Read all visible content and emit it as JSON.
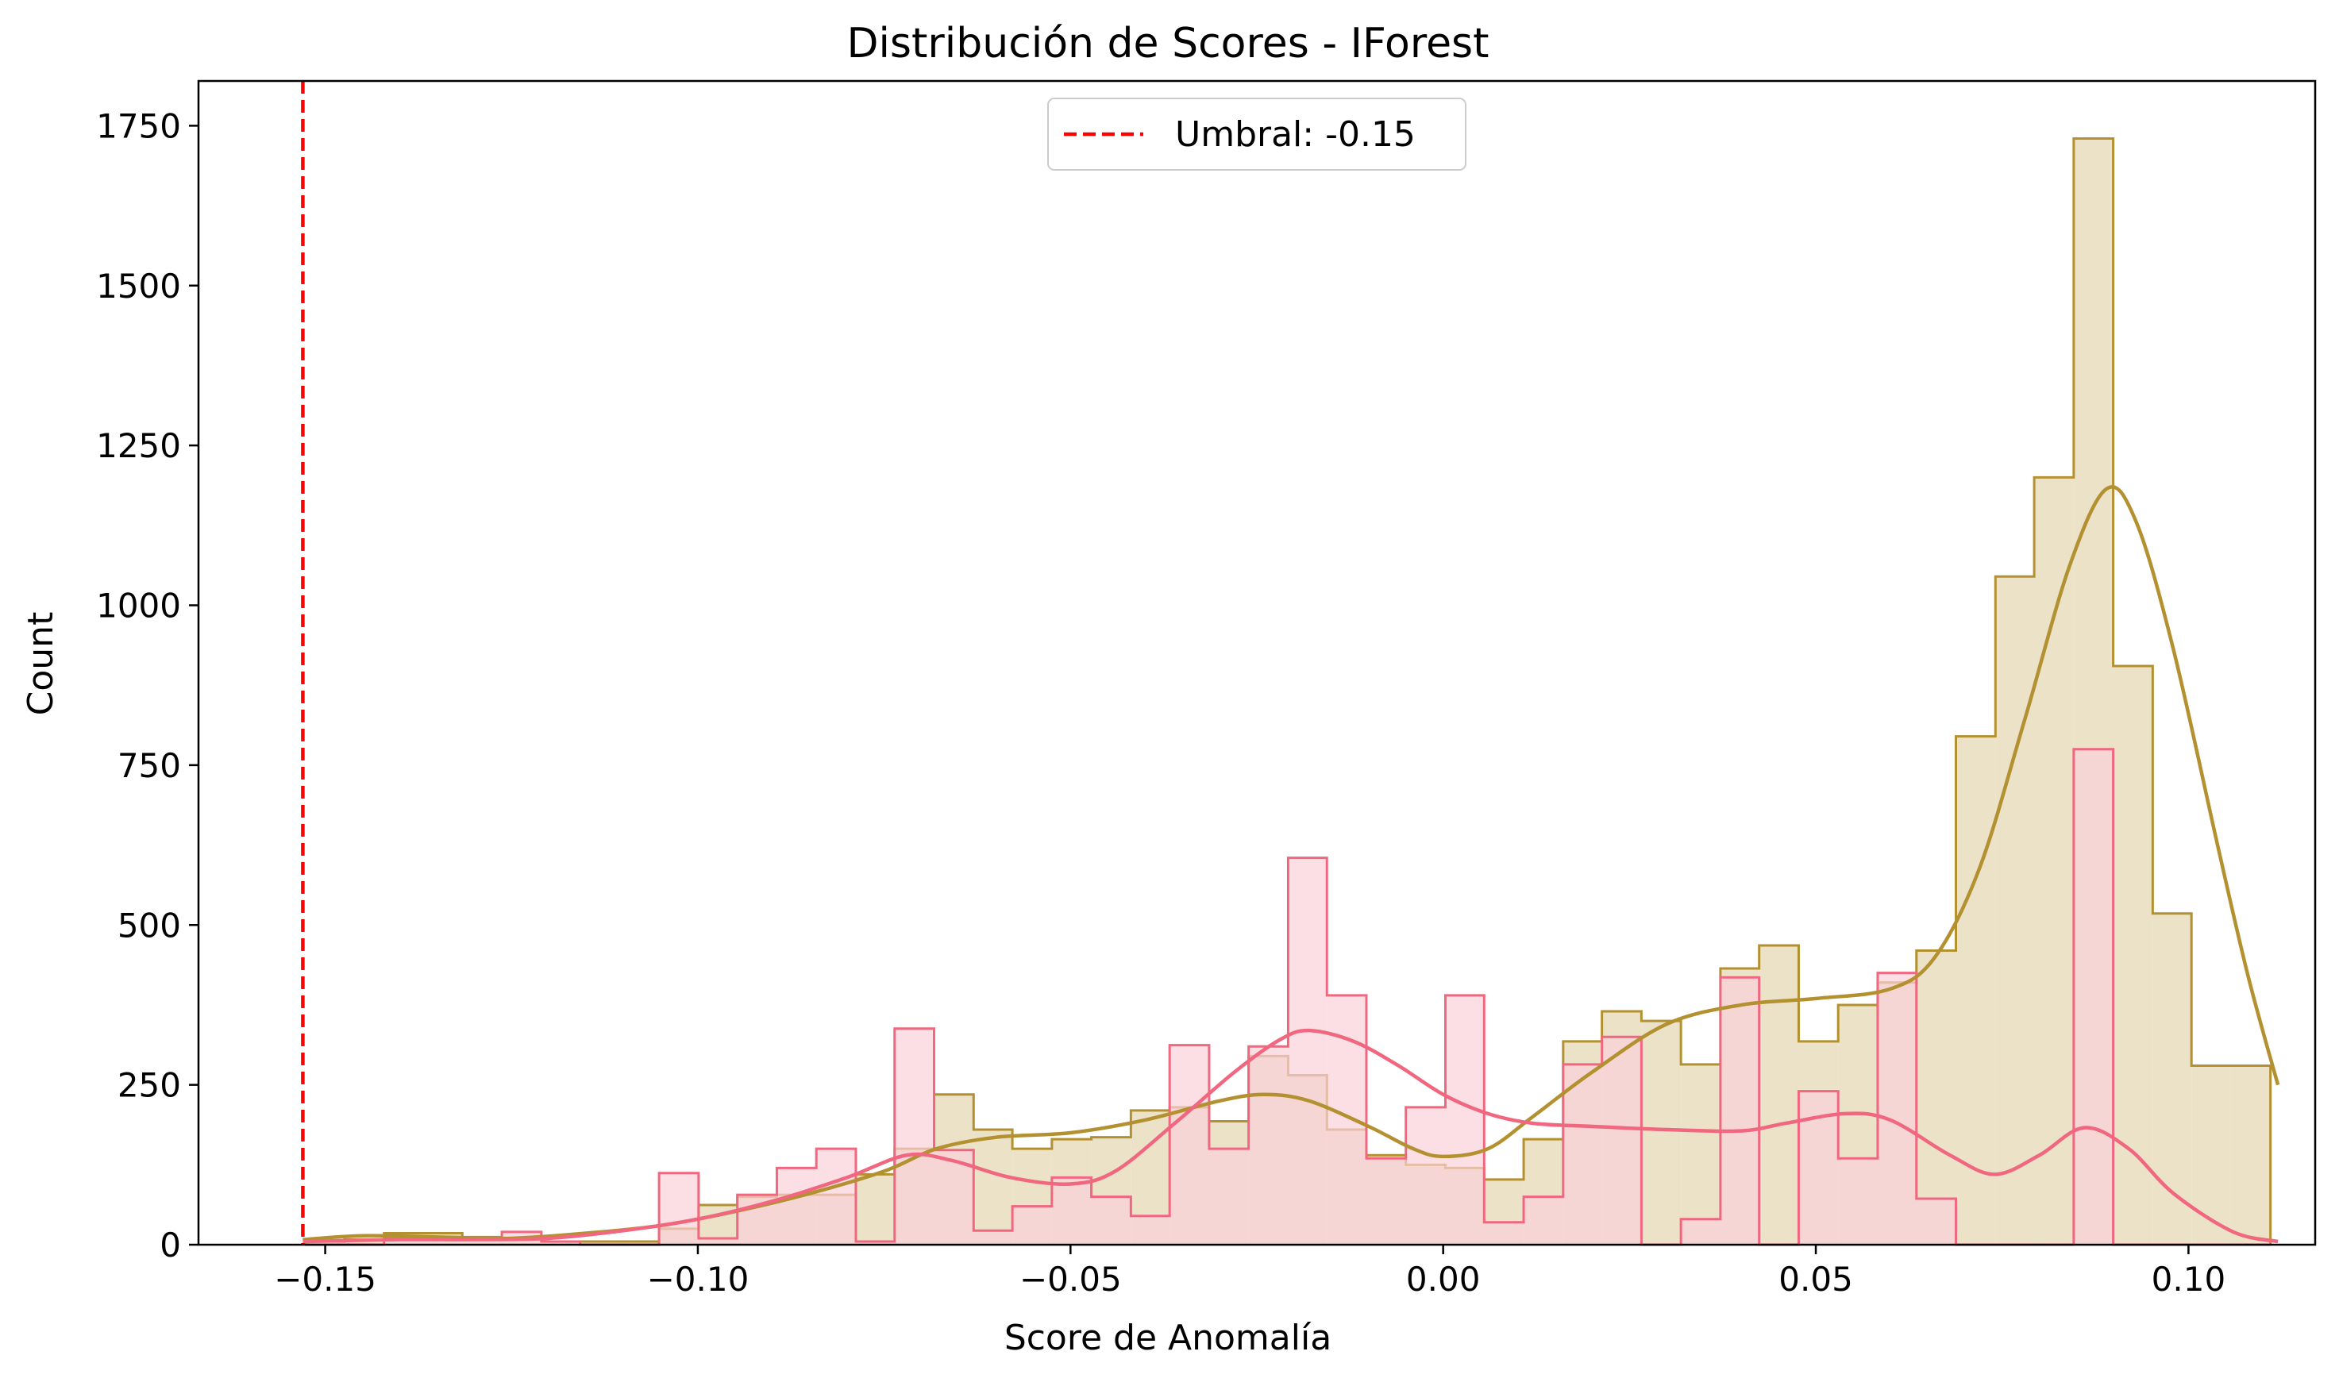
{
  "chart_data": {
    "type": "histogram",
    "title": "Distribución de Scores - IForest",
    "xlabel": "Score de Anomalía",
    "ylabel": "Count",
    "xlim": [
      -0.167,
      0.117
    ],
    "ylim": [
      0,
      1820
    ],
    "xticks": [
      -0.15,
      -0.1,
      -0.05,
      0.0,
      0.05,
      0.1
    ],
    "xtick_labels": [
      "−0.15",
      "−0.10",
      "−0.05",
      "0.00",
      "0.05",
      "0.10"
    ],
    "yticks": [
      0,
      250,
      500,
      750,
      1000,
      1250,
      1500,
      1750
    ],
    "ytick_labels": [
      "0",
      "250",
      "500",
      "750",
      "1000",
      "1250",
      "1500",
      "1750"
    ],
    "grid": false,
    "legend": {
      "position": "top-center",
      "entries": [
        {
          "label": "Umbral: -0.15",
          "style": "dashed",
          "color": "#ff0000"
        }
      ]
    },
    "threshold": {
      "x": -0.153,
      "color": "#ff0000",
      "style": "dashed"
    },
    "bin_edges": [
      -0.1527,
      -0.1474,
      -0.1421,
      -0.1368,
      -0.1316,
      -0.1263,
      -0.121,
      -0.1158,
      -0.1105,
      -0.1052,
      -0.0999,
      -0.0947,
      -0.0894,
      -0.0841,
      -0.0788,
      -0.0736,
      -0.0683,
      -0.063,
      -0.0578,
      -0.0525,
      -0.0472,
      -0.0419,
      -0.0367,
      -0.0314,
      -0.0261,
      -0.0208,
      -0.0156,
      -0.0103,
      -0.005,
      0.0003,
      0.0055,
      0.0108,
      0.0161,
      0.0213,
      0.0266,
      0.0319,
      0.0372,
      0.0424,
      0.0477,
      0.053,
      0.0583,
      0.0635,
      0.0688,
      0.0741,
      0.0793,
      0.0846,
      0.0899,
      0.0952,
      0.1004,
      0.1057,
      0.111,
      0.112
    ],
    "series": [
      {
        "color": "#b39130",
        "fill": "#ebe2c8",
        "counts": [
          5,
          8,
          18,
          18,
          12,
          10,
          5,
          5,
          5,
          25,
          62,
          75,
          78,
          78,
          110,
          150,
          235,
          180,
          150,
          165,
          168,
          210,
          215,
          193,
          295,
          265,
          180,
          140,
          125,
          120,
          102,
          165,
          318,
          365,
          350,
          282,
          432,
          468,
          318,
          375,
          410,
          460,
          795,
          1045,
          1200,
          1730,
          905,
          518,
          280,
          280
        ],
        "kde": [
          [
            -0.153,
            8
          ],
          [
            -0.145,
            14
          ],
          [
            -0.135,
            12
          ],
          [
            -0.125,
            10
          ],
          [
            -0.115,
            18
          ],
          [
            -0.105,
            30
          ],
          [
            -0.095,
            52
          ],
          [
            -0.085,
            80
          ],
          [
            -0.075,
            115
          ],
          [
            -0.068,
            150
          ],
          [
            -0.06,
            168
          ],
          [
            -0.05,
            175
          ],
          [
            -0.04,
            195
          ],
          [
            -0.03,
            225
          ],
          [
            -0.024,
            235
          ],
          [
            -0.018,
            225
          ],
          [
            -0.01,
            185
          ],
          [
            -0.004,
            150
          ],
          [
            0.0,
            138
          ],
          [
            0.006,
            150
          ],
          [
            0.012,
            200
          ],
          [
            0.02,
            270
          ],
          [
            0.03,
            345
          ],
          [
            0.04,
            375
          ],
          [
            0.05,
            385
          ],
          [
            0.06,
            400
          ],
          [
            0.066,
            450
          ],
          [
            0.072,
            590
          ],
          [
            0.078,
            820
          ],
          [
            0.084,
            1060
          ],
          [
            0.089,
            1182
          ],
          [
            0.093,
            1130
          ],
          [
            0.098,
            930
          ],
          [
            0.104,
            620
          ],
          [
            0.108,
            420
          ],
          [
            0.112,
            250
          ]
        ]
      },
      {
        "color": "#f0677f",
        "fill": "#fbd2da",
        "counts": [
          0,
          0,
          10,
          10,
          10,
          20,
          5,
          0,
          0,
          112,
          10,
          78,
          120,
          150,
          5,
          338,
          148,
          22,
          60,
          105,
          75,
          45,
          312,
          150,
          310,
          605,
          390,
          135,
          215,
          390,
          35,
          75,
          282,
          325,
          0,
          40,
          418,
          0,
          240,
          135,
          425,
          72,
          0,
          0,
          0,
          775,
          0,
          0,
          0,
          0
        ],
        "kde": [
          [
            -0.153,
            5
          ],
          [
            -0.14,
            8
          ],
          [
            -0.13,
            8
          ],
          [
            -0.12,
            10
          ],
          [
            -0.11,
            22
          ],
          [
            -0.1,
            40
          ],
          [
            -0.09,
            68
          ],
          [
            -0.08,
            105
          ],
          [
            -0.072,
            140
          ],
          [
            -0.066,
            132
          ],
          [
            -0.058,
            105
          ],
          [
            -0.05,
            95
          ],
          [
            -0.044,
            115
          ],
          [
            -0.036,
            190
          ],
          [
            -0.028,
            270
          ],
          [
            -0.022,
            320
          ],
          [
            -0.018,
            335
          ],
          [
            -0.012,
            318
          ],
          [
            -0.006,
            280
          ],
          [
            0.0,
            235
          ],
          [
            0.006,
            205
          ],
          [
            0.012,
            190
          ],
          [
            0.02,
            185
          ],
          [
            0.03,
            180
          ],
          [
            0.04,
            178
          ],
          [
            0.046,
            190
          ],
          [
            0.054,
            205
          ],
          [
            0.06,
            195
          ],
          [
            0.068,
            140
          ],
          [
            0.074,
            110
          ],
          [
            0.08,
            140
          ],
          [
            0.086,
            183
          ],
          [
            0.092,
            150
          ],
          [
            0.098,
            80
          ],
          [
            0.106,
            20
          ],
          [
            0.112,
            5
          ]
        ]
      }
    ]
  }
}
